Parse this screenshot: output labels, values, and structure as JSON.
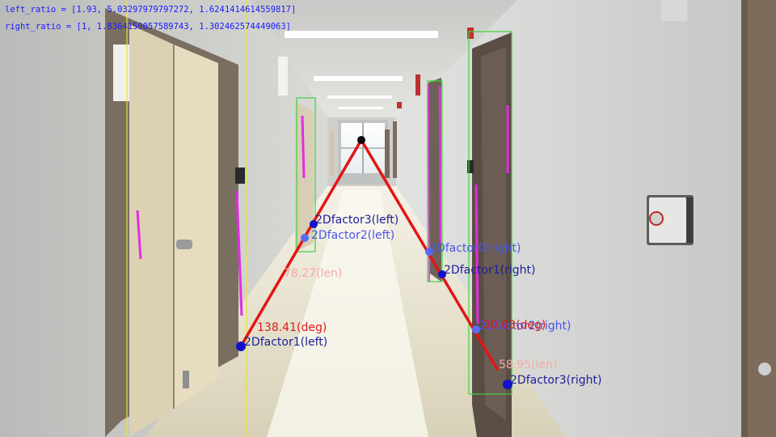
{
  "overlay": {
    "left_ratio": "left_ratio = [1.93, 5.03297979797272, 1.6241414614559817]",
    "right_ratio": "right_ratio = [1, 1.8364150057589743, 1.302462574449063]"
  },
  "labels": {
    "f3_left": "2Dfactor3(left)",
    "f2_left": "2Dfactor2(left)",
    "f1_left": "2Dfactor1(left)",
    "f0_right": "2Dfactor0(right)",
    "f1_right": "2Dfactor1(right)",
    "f2_right": "2Dfactor2(right)",
    "f3_right": "2Dfactor3(right)",
    "len_left": "78.27(len)",
    "deg_left": "138.41(deg)",
    "len_right": "58.95(len)",
    "deg_right": "30.63(deg)"
  },
  "colors": {
    "line": "#e41414",
    "point_left": "#1212c8",
    "point_right": "#5b6cf2",
    "box_green": "#3cd23c",
    "box_yellow": "#e8e23a",
    "magenta": "#e12ee1",
    "vanish": "#0a0a0a"
  }
}
